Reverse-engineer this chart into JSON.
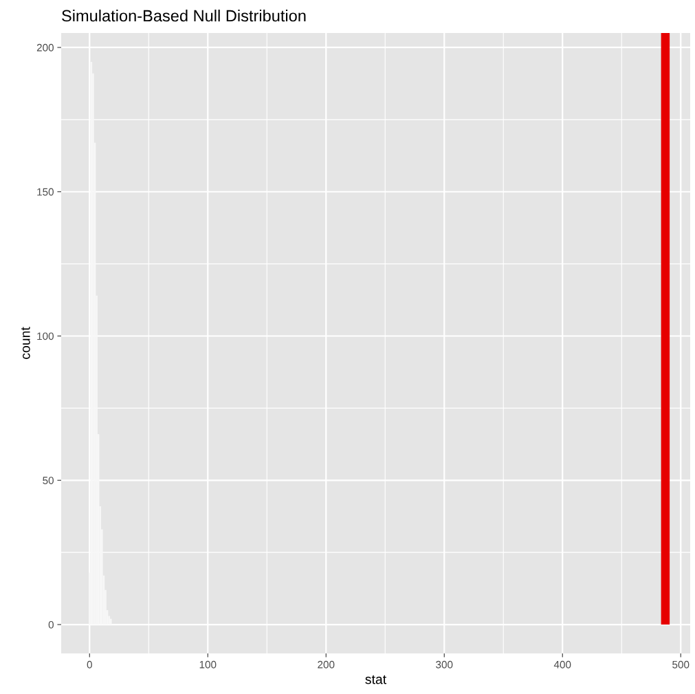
{
  "chart_data": {
    "type": "histogram",
    "title": "Simulation-Based Null Distribution",
    "xlabel": "stat",
    "ylabel": "count",
    "bins": [
      -0.75,
      0.75,
      2.25,
      3.75,
      5.25,
      6.75,
      8.25,
      9.75,
      11.25,
      12.75,
      14.25,
      15.75,
      17.25,
      18.75
    ],
    "values": [
      18,
      195,
      191,
      167,
      114,
      66,
      41,
      33,
      17,
      12,
      5,
      3,
      2
    ],
    "color": "#f7f7f7",
    "xlim": [
      -24,
      508
    ],
    "xticks": [
      0,
      100,
      200,
      300,
      400,
      500
    ],
    "ylim": [
      -10,
      205
    ],
    "yticks": [
      0,
      50,
      100,
      150,
      200
    ],
    "grid": true,
    "ref_lines": [
      {
        "axis": "x",
        "value": 487,
        "color": "#e60000"
      }
    ]
  }
}
